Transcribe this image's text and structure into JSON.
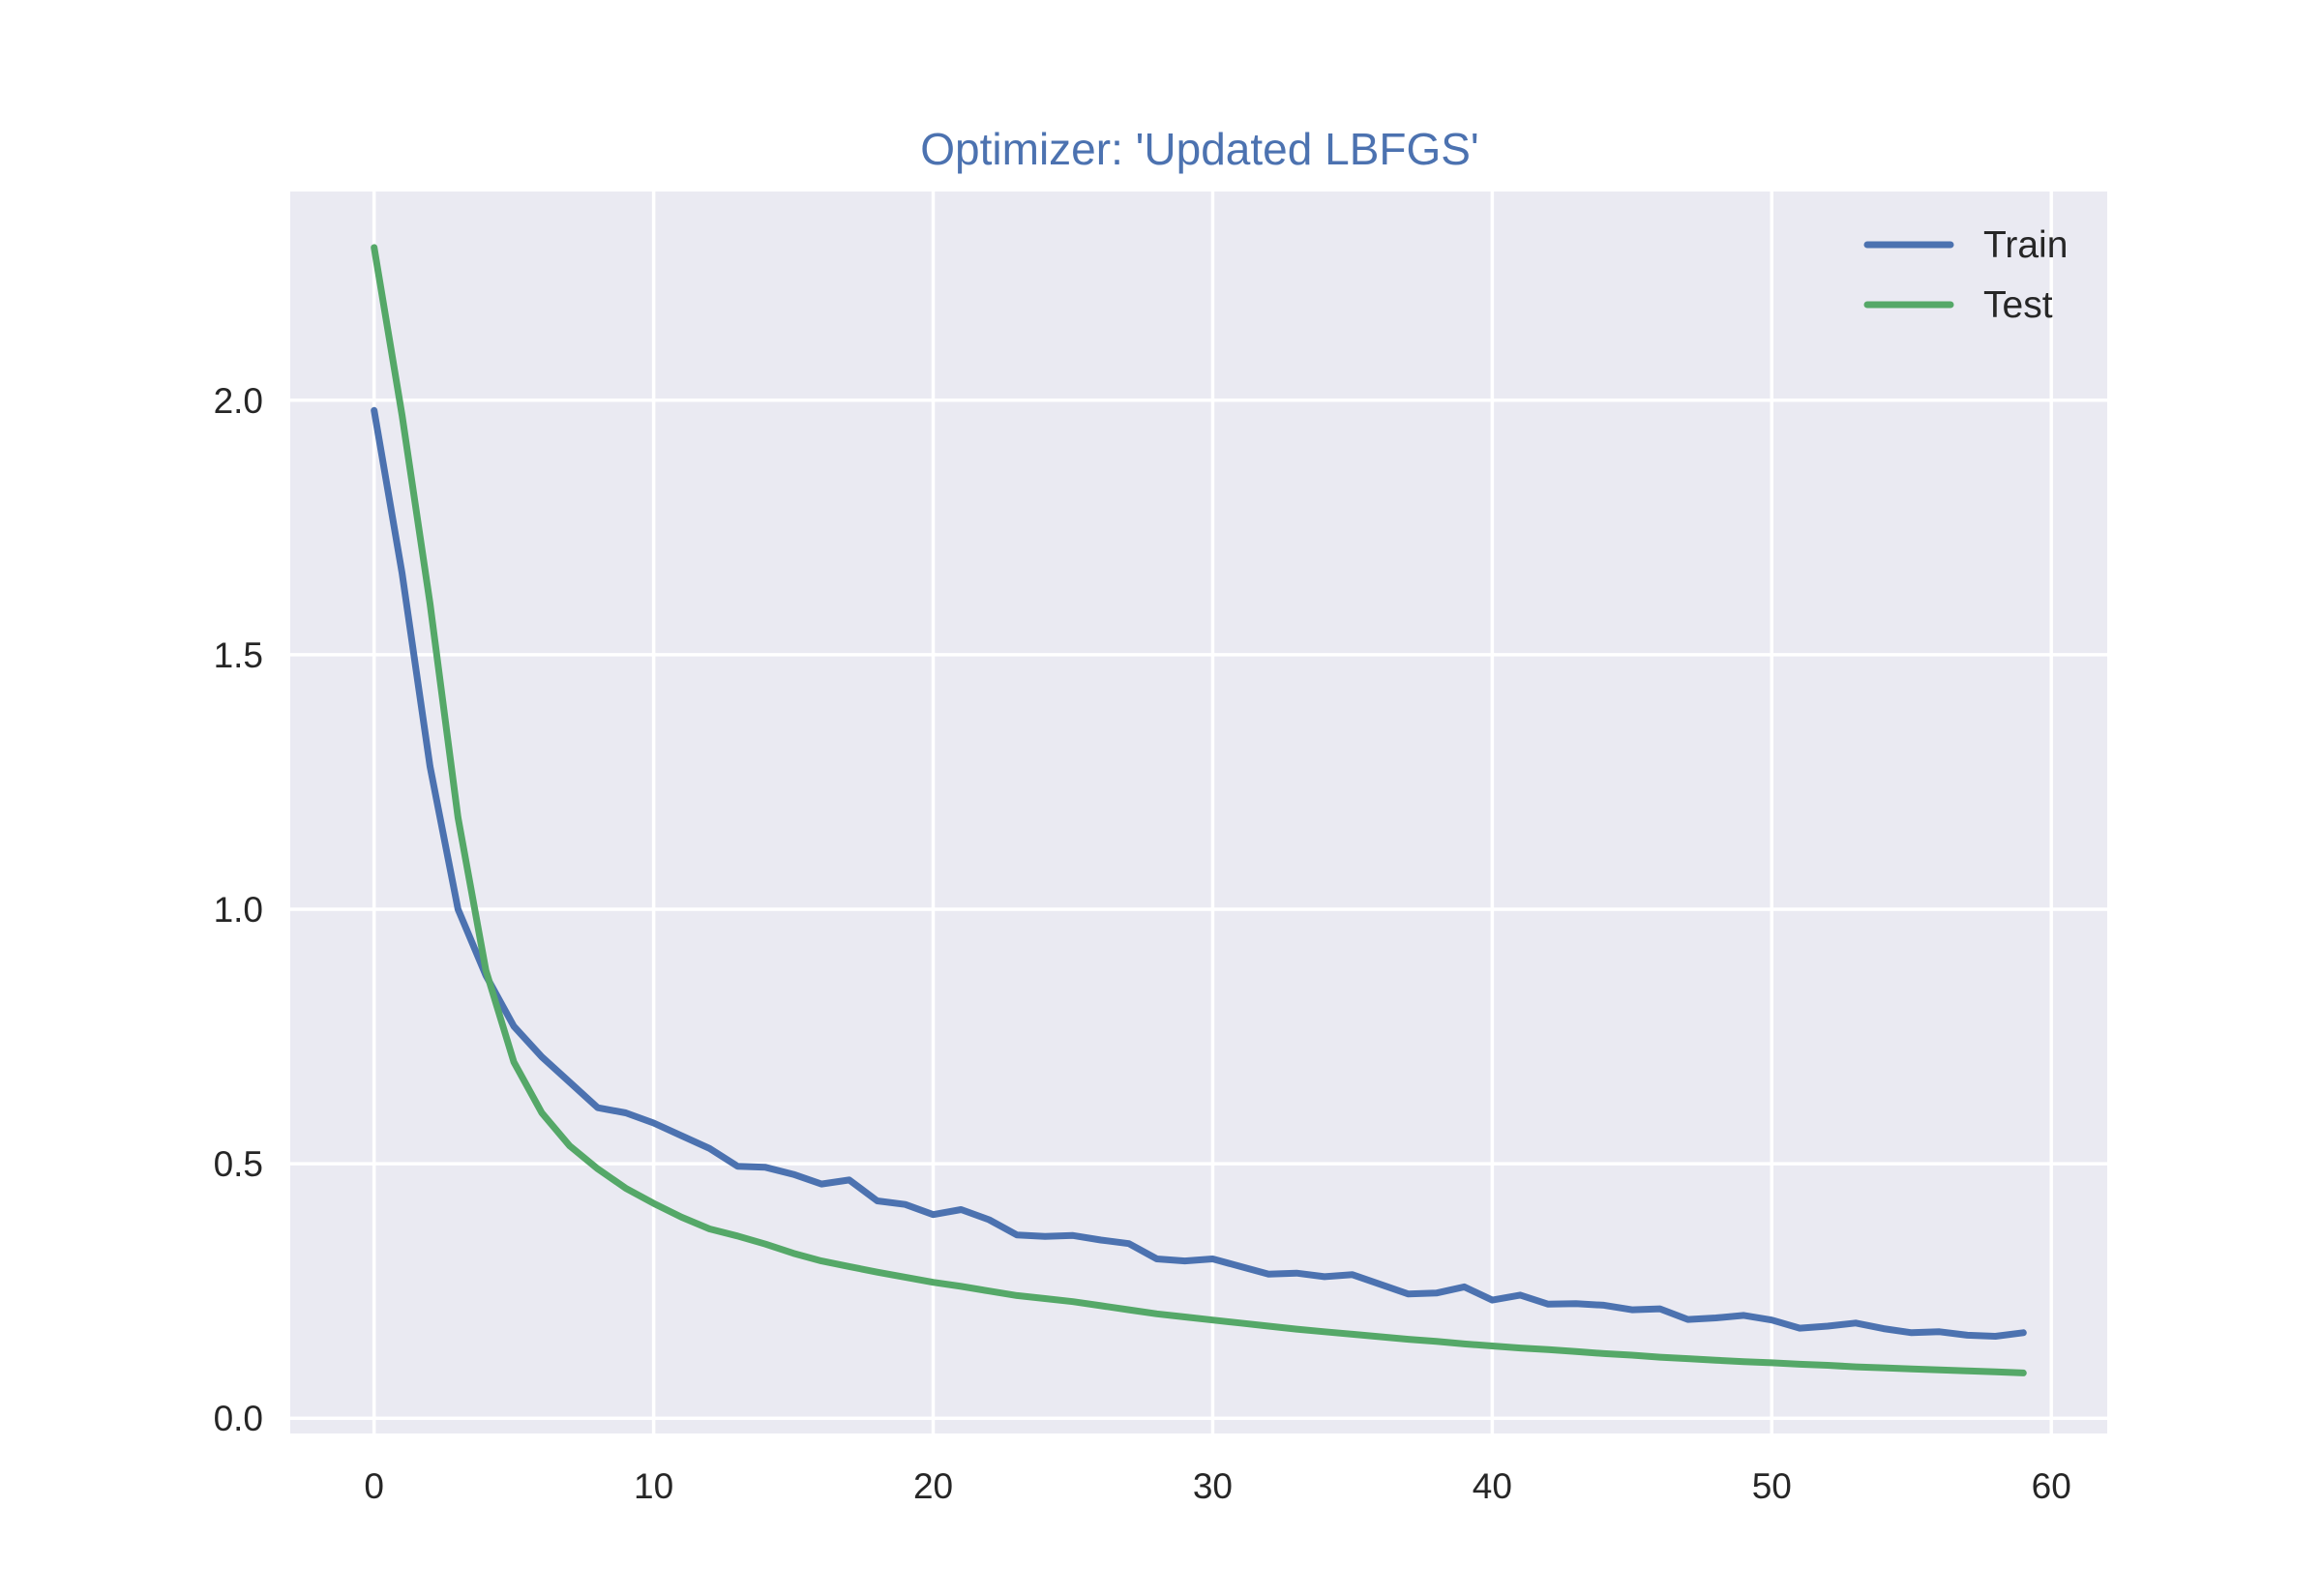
{
  "colors": {
    "background": "#ffffff",
    "axes_background": "#eaeaf2",
    "grid": "#ffffff",
    "title": "#4c72b0",
    "text": "#262626"
  },
  "chart_data": {
    "type": "line",
    "title": "Optimizer: 'Updated LBFGS'",
    "xlabel": "",
    "ylabel": "",
    "xlim": [
      -3,
      62
    ],
    "ylim": [
      -0.03,
      2.41
    ],
    "xticks": [
      0,
      10,
      20,
      30,
      40,
      50,
      60
    ],
    "xtick_labels": [
      "0",
      "10",
      "20",
      "30",
      "40",
      "50",
      "60"
    ],
    "yticks": [
      0.0,
      0.5,
      1.0,
      1.5,
      2.0
    ],
    "ytick_labels": [
      "0.0",
      "0.5",
      "1.0",
      "1.5",
      "2.0"
    ],
    "grid": true,
    "legend_position": "top-right",
    "x": [
      0,
      1,
      2,
      3,
      4,
      5,
      6,
      7,
      8,
      9,
      10,
      11,
      12,
      13,
      14,
      15,
      16,
      17,
      18,
      19,
      20,
      21,
      22,
      23,
      24,
      25,
      26,
      27,
      28,
      29,
      30,
      31,
      32,
      33,
      34,
      35,
      36,
      37,
      38,
      39,
      40,
      41,
      42,
      43,
      44,
      45,
      46,
      47,
      48,
      49,
      50,
      51,
      52,
      53,
      54,
      55,
      56,
      57,
      58,
      59
    ],
    "series": [
      {
        "name": "Train",
        "color": "#4c72b0",
        "values": [
          1.98,
          1.66,
          1.28,
          1.0,
          0.87,
          0.77,
          0.71,
          0.66,
          0.61,
          0.6,
          0.58,
          0.555,
          0.53,
          0.495,
          0.493,
          0.479,
          0.46,
          0.468,
          0.427,
          0.42,
          0.4,
          0.41,
          0.39,
          0.36,
          0.357,
          0.359,
          0.35,
          0.343,
          0.313,
          0.309,
          0.313,
          0.298,
          0.283,
          0.285,
          0.278,
          0.282,
          0.263,
          0.244,
          0.246,
          0.258,
          0.232,
          0.242,
          0.224,
          0.225,
          0.222,
          0.213,
          0.215,
          0.194,
          0.197,
          0.202,
          0.193,
          0.177,
          0.181,
          0.187,
          0.176,
          0.168,
          0.17,
          0.163,
          0.161,
          0.168
        ]
      },
      {
        "name": "Test",
        "color": "#55a868",
        "values": [
          2.3,
          1.97,
          1.6,
          1.18,
          0.88,
          0.7,
          0.6,
          0.535,
          0.49,
          0.452,
          0.422,
          0.395,
          0.372,
          0.358,
          0.342,
          0.324,
          0.309,
          0.298,
          0.287,
          0.277,
          0.267,
          0.259,
          0.25,
          0.241,
          0.235,
          0.229,
          0.221,
          0.213,
          0.205,
          0.199,
          0.193,
          0.187,
          0.181,
          0.175,
          0.17,
          0.165,
          0.16,
          0.155,
          0.151,
          0.146,
          0.142,
          0.138,
          0.135,
          0.131,
          0.127,
          0.124,
          0.12,
          0.117,
          0.114,
          0.111,
          0.109,
          0.106,
          0.104,
          0.101,
          0.099,
          0.097,
          0.095,
          0.093,
          0.091,
          0.089
        ]
      }
    ]
  }
}
